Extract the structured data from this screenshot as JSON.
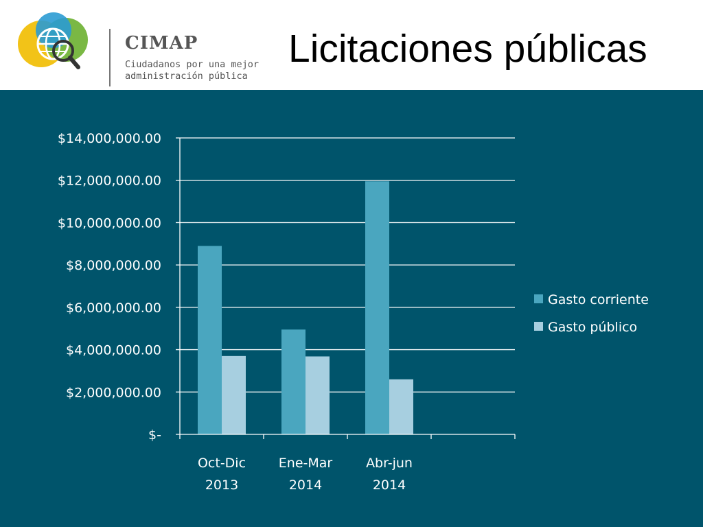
{
  "header": {
    "title": "Licitaciones públicas",
    "logo_name": "CIMAP",
    "logo_tagline_line1": "Ciudadanos por una mejor",
    "logo_tagline_line2": "administración pública"
  },
  "colors": {
    "background": "#00546b",
    "series1": "#4aa6bf",
    "series2": "#a7cfe0",
    "gridline": "#ffffff"
  },
  "chart_data": {
    "type": "bar",
    "categories": [
      [
        "Oct-Dic",
        "2013"
      ],
      [
        "Ene-Mar",
        "2014"
      ],
      [
        "Abr-jun",
        "2014"
      ]
    ],
    "series": [
      {
        "name": "Gasto corriente",
        "values": [
          8900000,
          4950000,
          11950000
        ]
      },
      {
        "name": "Gasto público",
        "values": [
          3700000,
          3680000,
          2600000
        ]
      }
    ],
    "ylim": [
      0,
      14000000
    ],
    "yticks": [
      {
        "value": 0,
        "label": "$-"
      },
      {
        "value": 2000000,
        "label": "$2,000,000.00"
      },
      {
        "value": 4000000,
        "label": "$4,000,000.00"
      },
      {
        "value": 6000000,
        "label": "$6,000,000.00"
      },
      {
        "value": 8000000,
        "label": "$8,000,000.00"
      },
      {
        "value": 10000000,
        "label": "$10,000,000.00"
      },
      {
        "value": 12000000,
        "label": "$12,000,000.00"
      },
      {
        "value": 14000000,
        "label": "$14,000,000.00"
      }
    ],
    "grid": true,
    "legend_position": "right"
  }
}
